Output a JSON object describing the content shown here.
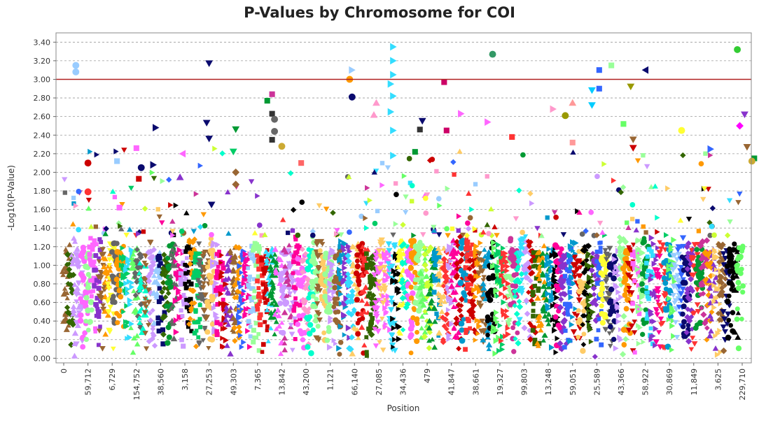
{
  "chart_data": {
    "type": "scatter",
    "title": "P-Values by Chromosome for COI",
    "xlabel": "Position",
    "ylabel": "-Log10(P-Value)",
    "ylim": [
      -0.05,
      3.5
    ],
    "yticks": [
      0.0,
      0.2,
      0.4,
      0.6,
      0.8,
      1.0,
      1.2,
      1.4,
      1.6,
      1.8,
      2.0,
      2.2,
      2.4,
      2.6,
      2.8,
      3.0,
      3.2,
      3.4
    ],
    "ytick_labels": [
      "0.00",
      "0.20",
      "0.40",
      "0.60",
      "0.80",
      "1.00",
      "1.20",
      "1.40",
      "1.60",
      "1.80",
      "2.00",
      "2.20",
      "2.40",
      "2.60",
      "2.80",
      "3.00",
      "3.20",
      "3.40"
    ],
    "xtick_labels": [
      "0",
      "59,712",
      "6,729",
      "154,752",
      "38,560",
      "3,158",
      "27,253",
      "49,303",
      "7,365",
      "13,842",
      "43,200",
      "1,121",
      "66,140",
      "27,085",
      "34,436",
      "479",
      "41,847",
      "38,661",
      "19,327",
      "99,803",
      "13,248",
      "59,051",
      "25,589",
      "43,366",
      "58,922",
      "30,869",
      "11,849",
      "3,625",
      "229,710"
    ],
    "threshold": {
      "value": 3.0,
      "color": "#b02020"
    },
    "grid": true,
    "palette": [
      "#0a0a6e",
      "#ff66ff",
      "#00cc66",
      "#33ddff",
      "#cc0000",
      "#ffff33",
      "#8833cc",
      "#66ff66",
      "#ff9900",
      "#3366ff",
      "#cc3399",
      "#ff3333",
      "#99ccff",
      "#996633",
      "#00ffcc",
      "#ff99cc",
      "#336600",
      "#666666",
      "#ccff33",
      "#0099cc",
      "#ff0099",
      "#009933",
      "#99ff99",
      "#cc99ff",
      "#ffcc66",
      "#000000"
    ],
    "markers": [
      "triangle-down",
      "triangle-right",
      "circle",
      "square",
      "diamond",
      "triangle-up"
    ],
    "peaks": [
      {
        "x": 0.5,
        "y": 3.15,
        "color": "#99ccff",
        "marker": "circle"
      },
      {
        "x": 0.5,
        "y": 3.08,
        "color": "#99ccff",
        "marker": "circle"
      },
      {
        "x": 1.0,
        "y": 2.1,
        "color": "#cc0000",
        "marker": "circle"
      },
      {
        "x": 1.0,
        "y": 1.79,
        "color": "#ff3333",
        "marker": "circle"
      },
      {
        "x": 2.2,
        "y": 2.12,
        "color": "#99ccff",
        "marker": "square"
      },
      {
        "x": 2.3,
        "y": 1.62,
        "color": "#ff66ff",
        "marker": "square"
      },
      {
        "x": 3.0,
        "y": 2.26,
        "color": "#ff66ff",
        "marker": "square"
      },
      {
        "x": 3.1,
        "y": 1.93,
        "color": "#cc0000",
        "marker": "square"
      },
      {
        "x": 3.2,
        "y": 2.05,
        "color": "#0a0a6e",
        "marker": "circle"
      },
      {
        "x": 3.8,
        "y": 2.48,
        "color": "#0a0a6e",
        "marker": "triangle-right"
      },
      {
        "x": 3.7,
        "y": 2.08,
        "color": "#0a0a6e",
        "marker": "triangle-right"
      },
      {
        "x": 4.9,
        "y": 2.2,
        "color": "#ff66ff",
        "marker": "triangle-left"
      },
      {
        "x": 4.8,
        "y": 1.95,
        "color": "#8833cc",
        "marker": "triangle-up"
      },
      {
        "x": 6.0,
        "y": 3.17,
        "color": "#0a0a6e",
        "marker": "triangle-down"
      },
      {
        "x": 5.9,
        "y": 2.53,
        "color": "#0a0a6e",
        "marker": "triangle-down"
      },
      {
        "x": 6.0,
        "y": 2.36,
        "color": "#0a0a6e",
        "marker": "triangle-down"
      },
      {
        "x": 6.1,
        "y": 1.65,
        "color": "#0a0a6e",
        "marker": "triangle-down"
      },
      {
        "x": 7.1,
        "y": 2.46,
        "color": "#009933",
        "marker": "triangle-down"
      },
      {
        "x": 7.0,
        "y": 2.22,
        "color": "#00cc66",
        "marker": "triangle-down"
      },
      {
        "x": 7.1,
        "y": 2.0,
        "color": "#996633",
        "marker": "diamond"
      },
      {
        "x": 7.1,
        "y": 1.87,
        "color": "#996633",
        "marker": "diamond"
      },
      {
        "x": 8.6,
        "y": 2.84,
        "color": "#cc3399",
        "marker": "square"
      },
      {
        "x": 8.4,
        "y": 2.77,
        "color": "#009933",
        "marker": "square"
      },
      {
        "x": 8.6,
        "y": 2.63,
        "color": "#333333",
        "marker": "square"
      },
      {
        "x": 8.7,
        "y": 2.57,
        "color": "#666666",
        "marker": "circle"
      },
      {
        "x": 8.7,
        "y": 2.44,
        "color": "#666666",
        "marker": "circle"
      },
      {
        "x": 8.6,
        "y": 2.35,
        "color": "#333333",
        "marker": "square"
      },
      {
        "x": 9.0,
        "y": 2.28,
        "color": "#ccaa33",
        "marker": "circle"
      },
      {
        "x": 9.8,
        "y": 2.1,
        "color": "#ff6666",
        "marker": "square"
      },
      {
        "x": 11.9,
        "y": 3.1,
        "color": "#99ccff",
        "marker": "triangle-right"
      },
      {
        "x": 11.8,
        "y": 3.0,
        "color": "#ff9900",
        "marker": "circle"
      },
      {
        "x": 11.9,
        "y": 2.81,
        "color": "#0a0a6e",
        "marker": "circle"
      },
      {
        "x": 12.9,
        "y": 2.75,
        "color": "#ff99cc",
        "marker": "triangle-up"
      },
      {
        "x": 12.8,
        "y": 2.62,
        "color": "#ff99cc",
        "marker": "triangle-up"
      },
      {
        "x": 13.6,
        "y": 3.35,
        "color": "#33ddff",
        "marker": "triangle-right"
      },
      {
        "x": 13.6,
        "y": 3.2,
        "color": "#33ddff",
        "marker": "triangle-right"
      },
      {
        "x": 13.6,
        "y": 3.05,
        "color": "#33ddff",
        "marker": "triangle-right"
      },
      {
        "x": 13.5,
        "y": 2.95,
        "color": "#33ddff",
        "marker": "triangle-right"
      },
      {
        "x": 13.6,
        "y": 2.82,
        "color": "#33ddff",
        "marker": "triangle-right"
      },
      {
        "x": 13.5,
        "y": 2.65,
        "color": "#33ddff",
        "marker": "triangle-right"
      },
      {
        "x": 13.6,
        "y": 2.45,
        "color": "#33ddff",
        "marker": "triangle-right"
      },
      {
        "x": 13.6,
        "y": 2.18,
        "color": "#33ddff",
        "marker": "triangle-right"
      },
      {
        "x": 14.8,
        "y": 2.55,
        "color": "#0a0a6e",
        "marker": "triangle-down"
      },
      {
        "x": 14.7,
        "y": 2.46,
        "color": "#333333",
        "marker": "square"
      },
      {
        "x": 14.5,
        "y": 2.22,
        "color": "#009933",
        "marker": "square"
      },
      {
        "x": 15.7,
        "y": 2.97,
        "color": "#cc0066",
        "marker": "square"
      },
      {
        "x": 15.8,
        "y": 2.45,
        "color": "#cc0066",
        "marker": "square"
      },
      {
        "x": 16.4,
        "y": 2.63,
        "color": "#ff66ff",
        "marker": "triangle-right"
      },
      {
        "x": 17.7,
        "y": 3.27,
        "color": "#339966",
        "marker": "circle"
      },
      {
        "x": 17.5,
        "y": 2.54,
        "color": "#ff66ff",
        "marker": "triangle-right"
      },
      {
        "x": 18.5,
        "y": 2.38,
        "color": "#ff3333",
        "marker": "square"
      },
      {
        "x": 20.2,
        "y": 2.68,
        "color": "#ff99cc",
        "marker": "triangle-right"
      },
      {
        "x": 20.7,
        "y": 2.61,
        "color": "#999900",
        "marker": "circle"
      },
      {
        "x": 21.0,
        "y": 2.75,
        "color": "#ff9999",
        "marker": "triangle-up"
      },
      {
        "x": 21.0,
        "y": 2.32,
        "color": "#ff9999",
        "marker": "square"
      },
      {
        "x": 22.1,
        "y": 3.1,
        "color": "#3366ff",
        "marker": "square"
      },
      {
        "x": 22.1,
        "y": 2.9,
        "color": "#3366ff",
        "marker": "square"
      },
      {
        "x": 21.8,
        "y": 2.88,
        "color": "#00ccff",
        "marker": "triangle-down"
      },
      {
        "x": 21.8,
        "y": 2.72,
        "color": "#00ccff",
        "marker": "triangle-down"
      },
      {
        "x": 22.6,
        "y": 3.15,
        "color": "#99ff99",
        "marker": "square"
      },
      {
        "x": 24.0,
        "y": 3.1,
        "color": "#0a0a6e",
        "marker": "triangle-left"
      },
      {
        "x": 23.4,
        "y": 2.92,
        "color": "#999900",
        "marker": "triangle-down"
      },
      {
        "x": 23.5,
        "y": 2.35,
        "color": "#996633",
        "marker": "triangle-down"
      },
      {
        "x": 23.5,
        "y": 2.26,
        "color": "#cc0000",
        "marker": "triangle-down"
      },
      {
        "x": 23.1,
        "y": 2.52,
        "color": "#66ff66",
        "marker": "square"
      },
      {
        "x": 25.5,
        "y": 2.45,
        "color": "#ffff33",
        "marker": "circle"
      },
      {
        "x": 26.7,
        "y": 2.25,
        "color": "#3366ff",
        "marker": "triangle-right"
      },
      {
        "x": 27.8,
        "y": 3.32,
        "color": "#33cc33",
        "marker": "circle"
      },
      {
        "x": 28.1,
        "y": 2.62,
        "color": "#8833cc",
        "marker": "triangle-down"
      },
      {
        "x": 27.9,
        "y": 2.5,
        "color": "#ff00ff",
        "marker": "diamond"
      },
      {
        "x": 28.2,
        "y": 2.27,
        "color": "#996633",
        "marker": "triangle-down"
      },
      {
        "x": 28.5,
        "y": 2.15,
        "color": "#009933",
        "marker": "square"
      },
      {
        "x": 28.4,
        "y": 2.12,
        "color": "#ccaa33",
        "marker": "circle"
      }
    ]
  }
}
